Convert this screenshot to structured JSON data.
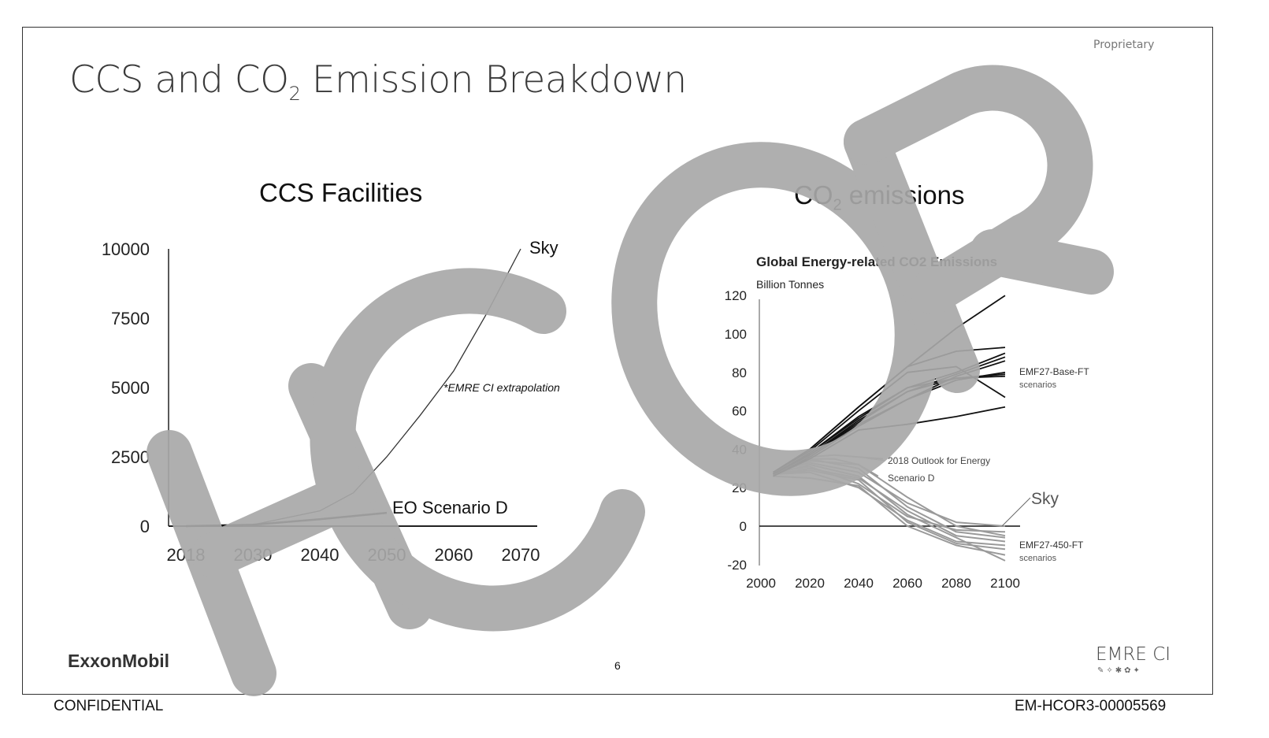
{
  "slide": {
    "title_main": "CCS and CO",
    "title_sub": "2",
    "title_rest": " Emission Breakdown",
    "proprietary": "Proprietary",
    "page_number": "6",
    "logo_left": "ExxonMobil",
    "logo_right": "EMRE CI",
    "watermark": "HCOR"
  },
  "footer": {
    "left": "CONFIDENTIAL",
    "right": "EM-HCOR3-00005569"
  },
  "chart_data": [
    {
      "type": "line",
      "title": "CCS Facilities",
      "x_ticks": [
        "2018",
        "2030",
        "2040",
        "2050",
        "2060",
        "2070"
      ],
      "y_ticks": [
        "0",
        "2500",
        "5000",
        "7500",
        "10000"
      ],
      "ylim": [
        0,
        10000
      ],
      "grid": false,
      "annotation": "*EMRE CI extrapolation",
      "series": [
        {
          "name": "Sky",
          "x": [
            2018,
            2030,
            2040,
            2045,
            2050,
            2055,
            2060,
            2065,
            2070
          ],
          "y": [
            0,
            50,
            550,
            1200,
            2500,
            4000,
            5600,
            7700,
            10000
          ]
        },
        {
          "name": "EO Scenario D",
          "x": [
            2018,
            2030,
            2040,
            2050
          ],
          "y": [
            0,
            50,
            250,
            480
          ]
        }
      ]
    },
    {
      "type": "line",
      "title": "CO2 emissions",
      "title_main": "CO",
      "title_sub": "2",
      "title_rest": " emissions",
      "subtitle": "Global Energy-related CO2 Emissions",
      "ylabel": "Billion Tonnes",
      "x_ticks": [
        "2000",
        "2020",
        "2040",
        "2060",
        "2080",
        "2100"
      ],
      "y_ticks": [
        "-20",
        "0",
        "20",
        "40",
        "60",
        "80",
        "100",
        "120"
      ],
      "xlim": [
        2000,
        2100
      ],
      "ylim": [
        -20,
        120
      ],
      "grid": false,
      "x": [
        2005,
        2020,
        2040,
        2060,
        2080,
        2100
      ],
      "labels": {
        "base": "EMF27-Base-FT",
        "base2": "scenarios",
        "low": "EMF27-450-FT",
        "low2": "scenarios",
        "outlook": "2018 Outlook for Energy",
        "scenario_d": "Scenario D",
        "sky": "Sky"
      },
      "base_series": [
        [
          28,
          40,
          62,
          83,
          103,
          120
        ],
        [
          28,
          40,
          62,
          83,
          91,
          93
        ],
        [
          27,
          38,
          56,
          72,
          80,
          90
        ],
        [
          27,
          37,
          54,
          70,
          79,
          88
        ],
        [
          26,
          36,
          52,
          66,
          78,
          86
        ],
        [
          28,
          39,
          60,
          80,
          83,
          67
        ],
        [
          27,
          37,
          53,
          66,
          76,
          80
        ],
        [
          27,
          37,
          55,
          70,
          77,
          78
        ],
        [
          26,
          35,
          50,
          53,
          57,
          62
        ],
        [
          27,
          38,
          57,
          72,
          77,
          79
        ]
      ],
      "low_series": [
        [
          28,
          33,
          28,
          12,
          2,
          0
        ],
        [
          28,
          31,
          22,
          5,
          -2,
          -3
        ],
        [
          28,
          35,
          30,
          10,
          -3,
          -6
        ],
        [
          27,
          30,
          25,
          8,
          -5,
          -8
        ],
        [
          27,
          28,
          20,
          3,
          -8,
          -10
        ],
        [
          26,
          25,
          21,
          0,
          -10,
          -15
        ],
        [
          27,
          32,
          26,
          6,
          -6,
          -18
        ],
        [
          28,
          34,
          32,
          15,
          0,
          -5
        ],
        [
          27,
          29,
          24,
          2,
          -9,
          -12
        ]
      ],
      "outlook_series": {
        "x": [
          2005,
          2020,
          2030,
          2040,
          2050
        ],
        "y": [
          28,
          36,
          37,
          36,
          35
        ]
      },
      "scenario_d_series": {
        "x": [
          2005,
          2020,
          2030,
          2040,
          2048
        ],
        "y": [
          28,
          35,
          35,
          32,
          26
        ]
      }
    }
  ],
  "colors": {
    "base": "#111111",
    "low": "#9a9a9a",
    "watermark": "#a8a8a8"
  }
}
